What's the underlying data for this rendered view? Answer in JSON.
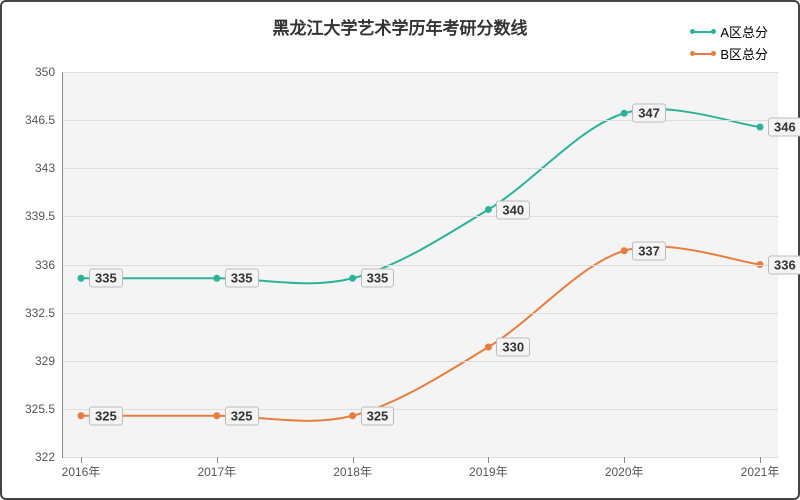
{
  "chart": {
    "type": "line",
    "title": "黑龙江大学艺术学历年考研分数线",
    "title_fontsize": 17,
    "background_color": "#ffffff",
    "plot_background": "#f4f4f4",
    "border_color": "#444444",
    "grid_color": "#dcdcdc",
    "axis_color": "#888888",
    "text_color": "#333333",
    "label_fontsize": 12,
    "datalabel_fontsize": 13,
    "xlim": [
      2016,
      2021
    ],
    "ylim": [
      322,
      350
    ],
    "ytick_step": 3.5,
    "yticks": [
      322,
      325.5,
      329,
      332.5,
      336,
      339.5,
      343,
      346.5,
      350
    ],
    "xticks": [
      2016,
      2017,
      2018,
      2019,
      2020,
      2021
    ],
    "xtick_labels": [
      "2016年",
      "2017年",
      "2018年",
      "2019年",
      "2020年",
      "2021年"
    ],
    "line_width": 2,
    "marker_radius": 3.5,
    "smooth": true,
    "series": [
      {
        "name": "A区总分",
        "color": "#2bb39a",
        "values": [
          335,
          335,
          335,
          340,
          347,
          346
        ]
      },
      {
        "name": "B区总分",
        "color": "#e87c3e",
        "values": [
          325,
          325,
          325,
          330,
          337,
          336
        ]
      }
    ]
  }
}
